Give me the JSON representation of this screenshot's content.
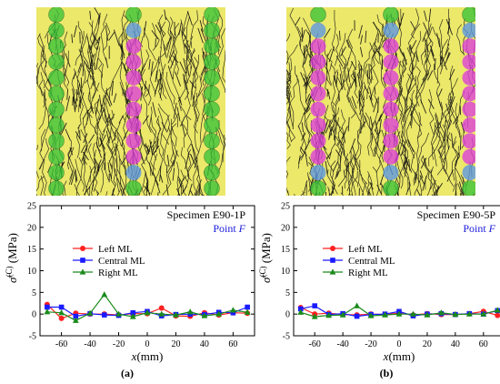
{
  "colors": {
    "left_ml": "#ff2020",
    "central_ml": "#1a1aff",
    "right_ml": "#1a8a1a",
    "point_text": "#1a1adb",
    "specimen_background": "#ece86a",
    "crack_line": "#111111",
    "overlay_green": "#39c339",
    "overlay_blue": "#5a96e6",
    "overlay_magenta": "#dc3cdc"
  },
  "specimens": [
    {
      "sub_label": "(a)",
      "specimen_text": "Specimen E90-1P",
      "point_prefix": "Point ",
      "point_letter": "F",
      "image": {
        "description_icon": "crack-pattern-image",
        "columns": [
          {
            "position": "left",
            "sequence": [
              "green",
              "green",
              "green",
              "green",
              "green",
              "green",
              "green",
              "green",
              "green",
              "green",
              "green",
              "green"
            ]
          },
          {
            "position": "center",
            "sequence": [
              "green",
              "blue",
              "magenta",
              "magenta",
              "magenta",
              "magenta",
              "magenta",
              "magenta",
              "magenta",
              "magenta",
              "blue",
              "green"
            ]
          },
          {
            "position": "right",
            "sequence": [
              "green",
              "green",
              "green",
              "green",
              "green",
              "green",
              "green",
              "green",
              "green",
              "green",
              "green",
              "green"
            ]
          }
        ]
      }
    },
    {
      "sub_label": "(b)",
      "specimen_text": "Specimen E90-5P",
      "point_prefix": "Point ",
      "point_letter": "F",
      "image": {
        "description_icon": "crack-pattern-image",
        "columns": [
          {
            "position": "left",
            "sequence": [
              "green",
              "blue",
              "magenta",
              "magenta",
              "magenta",
              "magenta",
              "magenta",
              "magenta",
              "magenta",
              "magenta",
              "blue",
              "green"
            ]
          },
          {
            "position": "center",
            "sequence": [
              "green",
              "blue",
              "magenta",
              "magenta",
              "magenta",
              "magenta",
              "magenta",
              "magenta",
              "magenta",
              "magenta",
              "blue",
              "green"
            ]
          },
          {
            "position": "right",
            "sequence": [
              "green",
              "blue",
              "magenta",
              "magenta",
              "magenta",
              "magenta",
              "magenta",
              "magenta",
              "magenta",
              "magenta",
              "blue",
              "green"
            ]
          }
        ]
      }
    }
  ],
  "chart_data": [
    {
      "type": "line",
      "title": "",
      "xlabel": "x(mm)",
      "ylabel": "σ̄(C) (MPa)",
      "xlim": [
        -75,
        75
      ],
      "ylim": [
        -5,
        25
      ],
      "xticks": [
        -60,
        -40,
        -20,
        0,
        20,
        40,
        60
      ],
      "yticks": [
        -5,
        0,
        5,
        10,
        15,
        20,
        25
      ],
      "legend_placement": "upper-left",
      "x": [
        -70,
        -60,
        -50,
        -40,
        -30,
        -20,
        -10,
        0,
        10,
        20,
        30,
        40,
        50,
        60,
        70
      ],
      "series": [
        {
          "name": "Left ML",
          "color": "#ff2020",
          "marker": "circle",
          "values": [
            2.2,
            -1.0,
            0.2,
            0.0,
            0.0,
            -0.2,
            0.1,
            0.1,
            1.4,
            -0.4,
            -0.5,
            0.3,
            -0.2,
            0.3,
            0.2
          ]
        },
        {
          "name": "Central ML",
          "color": "#1a1aff",
          "marker": "square",
          "values": [
            1.6,
            1.6,
            -0.5,
            0.1,
            -0.2,
            -0.3,
            0.3,
            0.6,
            -0.4,
            -0.1,
            0.0,
            -0.1,
            0.4,
            0.3,
            1.6
          ]
        },
        {
          "name": "Right ML",
          "color": "#1a8a1a",
          "marker": "triangle",
          "values": [
            0.5,
            0.3,
            -1.5,
            0.2,
            4.5,
            0.0,
            -0.6,
            0.3,
            0.0,
            -0.2,
            0.5,
            -0.4,
            0.0,
            0.9,
            0.4
          ]
        }
      ]
    },
    {
      "type": "line",
      "title": "",
      "xlabel": "x(mm)",
      "ylabel": "σ̄(C) (MPa)",
      "xlim": [
        -75,
        75
      ],
      "ylim": [
        -5,
        25
      ],
      "xticks": [
        -60,
        -40,
        -20,
        0,
        20,
        40,
        60
      ],
      "yticks": [
        -5,
        0,
        5,
        10,
        15,
        20,
        25
      ],
      "legend_placement": "upper-left",
      "x": [
        -70,
        -60,
        -50,
        -40,
        -30,
        -20,
        -10,
        0,
        10,
        20,
        30,
        40,
        50,
        60,
        70
      ],
      "series": [
        {
          "name": "Left ML",
          "color": "#ff2020",
          "marker": "circle",
          "values": [
            1.5,
            0.0,
            0.2,
            -0.1,
            -0.2,
            0.0,
            -0.1,
            0.2,
            -0.2,
            0.1,
            -0.1,
            -0.1,
            0.1,
            0.6,
            -0.3
          ]
        },
        {
          "name": "Central ML",
          "color": "#1a1aff",
          "marker": "square",
          "values": [
            1.2,
            1.9,
            -0.1,
            0.1,
            -0.5,
            -0.1,
            0.0,
            0.6,
            -0.4,
            0.0,
            0.1,
            -0.1,
            0.1,
            0.0,
            0.8
          ]
        },
        {
          "name": "Right ML",
          "color": "#1a8a1a",
          "marker": "triangle",
          "values": [
            0.4,
            -0.6,
            -0.3,
            -0.2,
            1.9,
            -0.4,
            -0.2,
            0.0,
            0.0,
            -0.2,
            0.3,
            -0.1,
            0.0,
            0.0,
            0.9
          ]
        }
      ]
    }
  ]
}
